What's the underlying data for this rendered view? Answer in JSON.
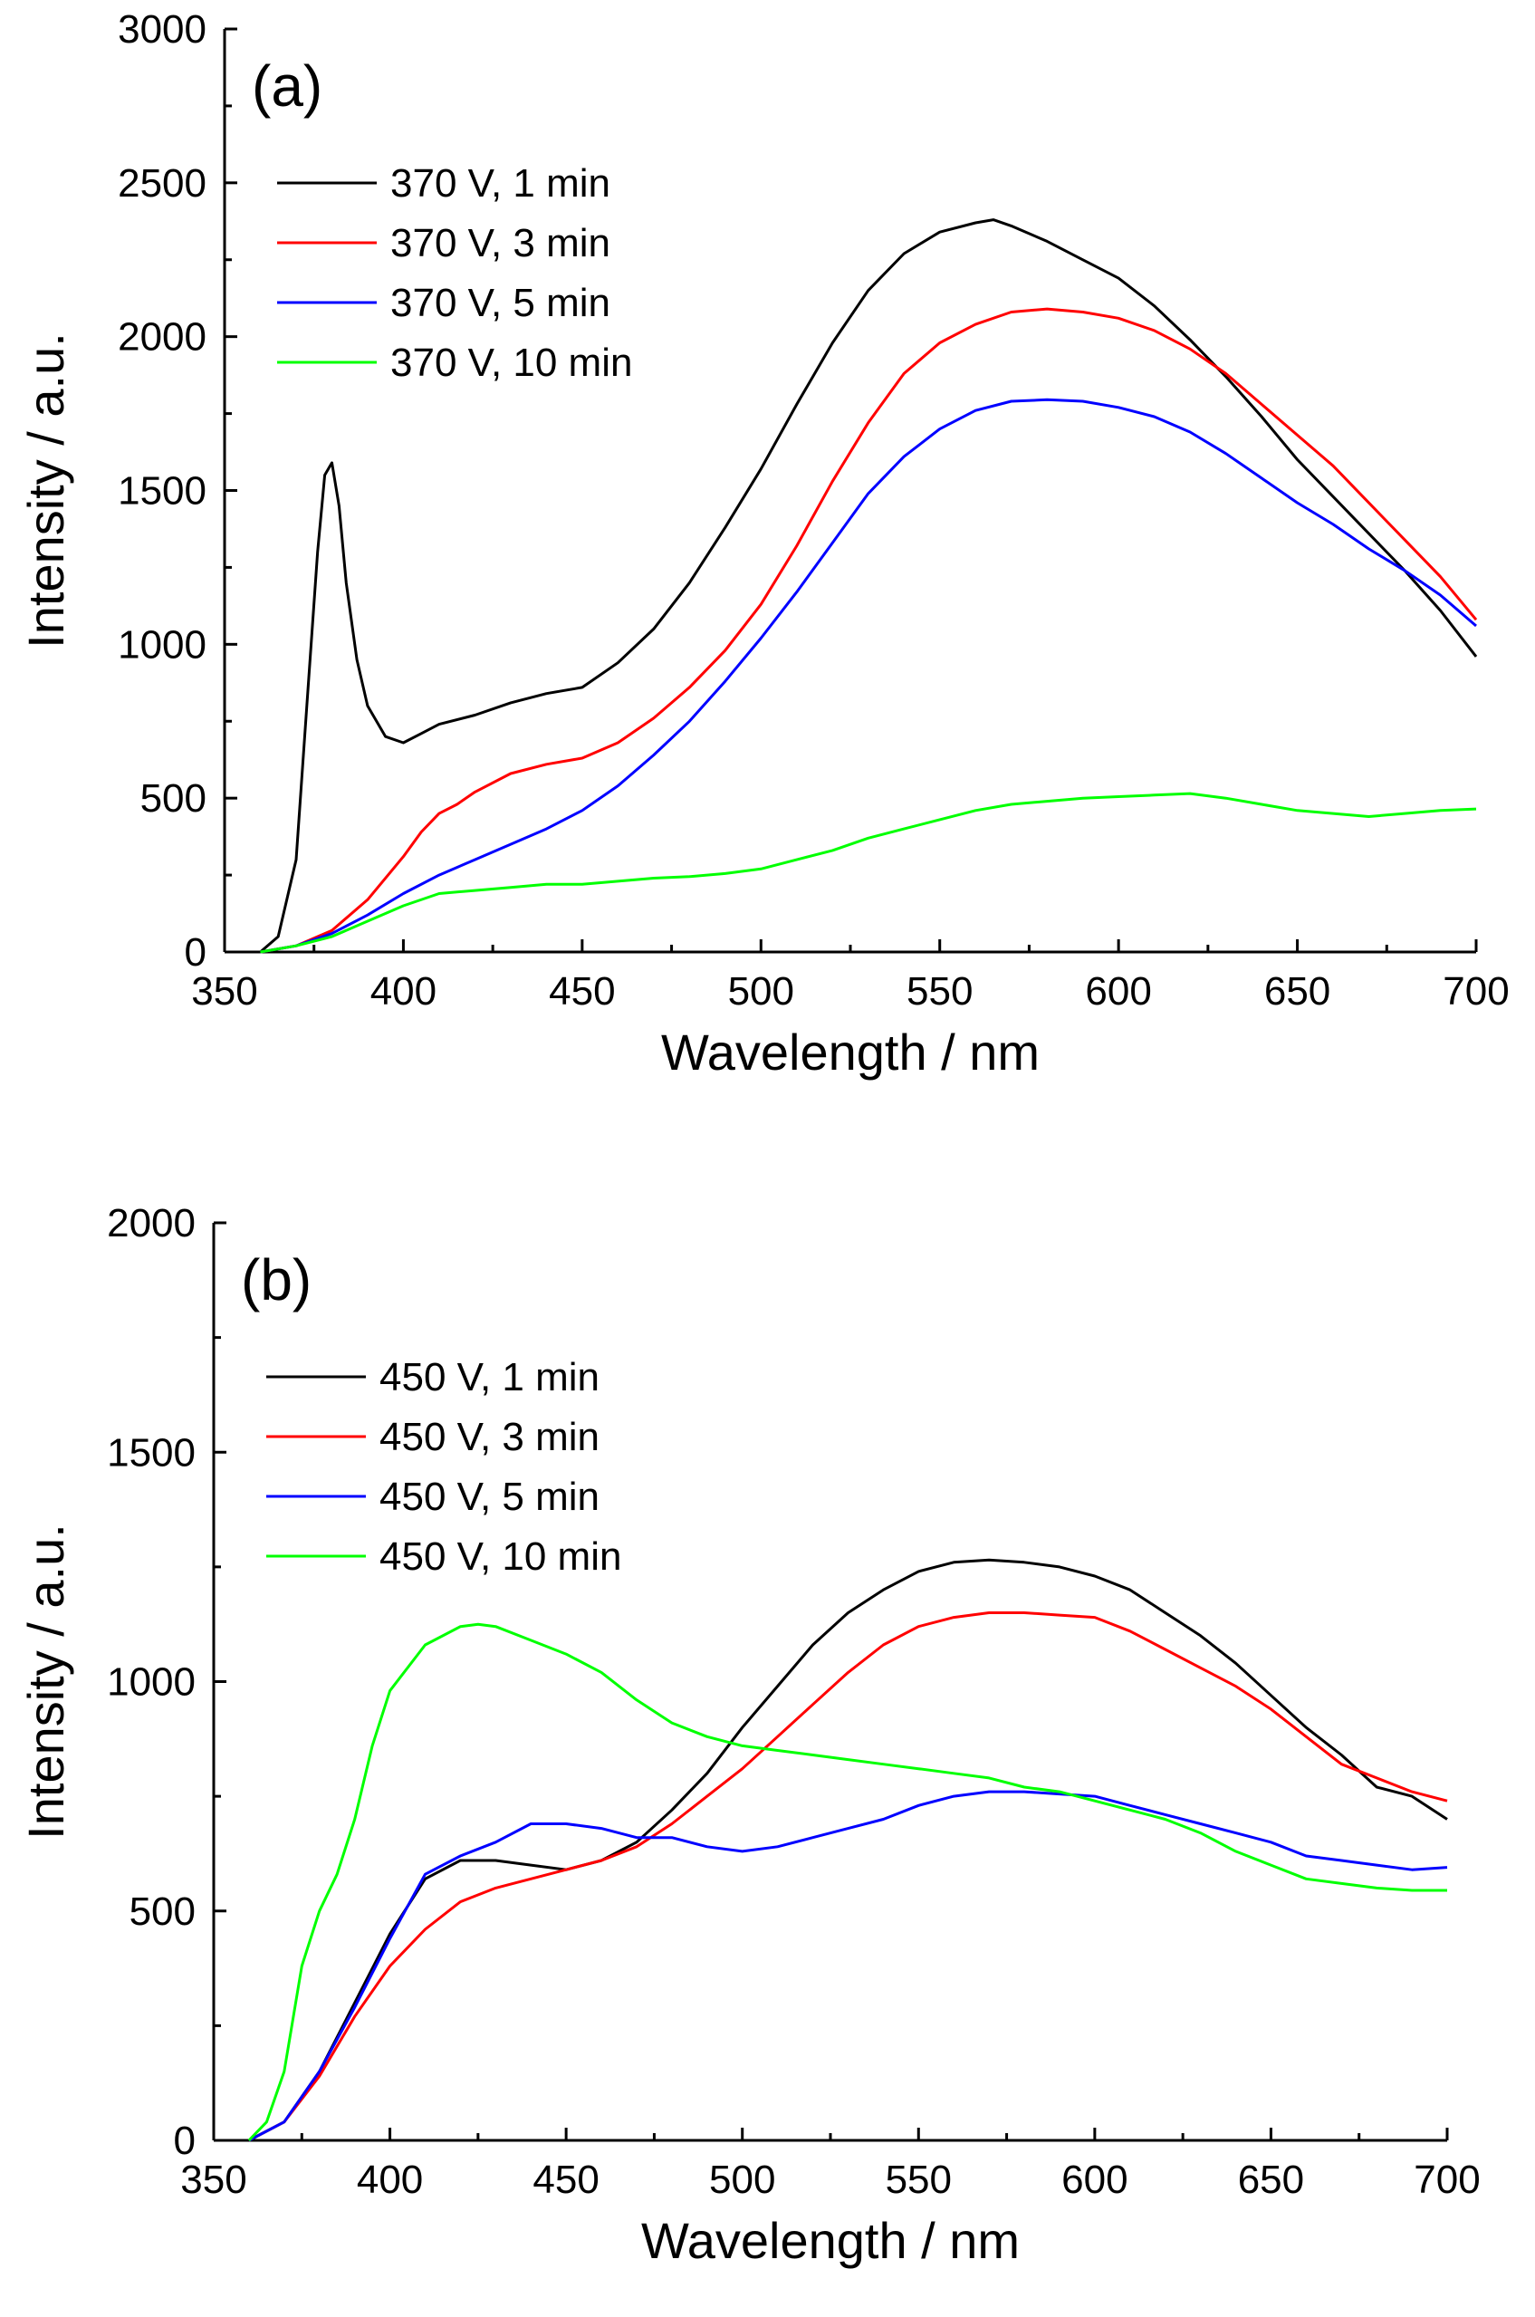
{
  "chart_data": [
    {
      "type": "line",
      "panel_label": "(a)",
      "xlabel": "Wavelength / nm",
      "ylabel": "Intensity / a.u.",
      "xlim": [
        350,
        700
      ],
      "ylim": [
        0,
        3000
      ],
      "xticks": [
        "350",
        "400",
        "450",
        "500",
        "550",
        "600",
        "650",
        "700"
      ],
      "yticks": [
        "0",
        "500",
        "1000",
        "1500",
        "2000",
        "2500",
        "3000"
      ],
      "grid": false,
      "legend_position": "top-left",
      "series": [
        {
          "name": "370 V, 1 min",
          "color": "#000000",
          "x": [
            360,
            365,
            370,
            373,
            376,
            378,
            380,
            382,
            384,
            387,
            390,
            395,
            400,
            405,
            410,
            420,
            430,
            440,
            450,
            460,
            470,
            480,
            490,
            500,
            510,
            520,
            530,
            540,
            550,
            560,
            565,
            570,
            580,
            590,
            600,
            610,
            620,
            630,
            640,
            650,
            660,
            670,
            680,
            690,
            700
          ],
          "y": [
            0,
            50,
            300,
            800,
            1300,
            1550,
            1590,
            1450,
            1200,
            950,
            800,
            700,
            680,
            710,
            740,
            770,
            810,
            840,
            860,
            940,
            1050,
            1200,
            1380,
            1570,
            1780,
            1980,
            2150,
            2270,
            2340,
            2370,
            2380,
            2360,
            2310,
            2250,
            2190,
            2100,
            1990,
            1870,
            1740,
            1600,
            1480,
            1360,
            1240,
            1110,
            960
          ]
        },
        {
          "name": "370 V, 3 min",
          "color": "#ff0000",
          "x": [
            360,
            370,
            380,
            390,
            400,
            405,
            410,
            415,
            420,
            430,
            440,
            450,
            460,
            470,
            480,
            490,
            500,
            510,
            520,
            530,
            540,
            550,
            560,
            570,
            580,
            590,
            600,
            610,
            620,
            630,
            640,
            650,
            660,
            670,
            680,
            690,
            700
          ],
          "y": [
            0,
            20,
            70,
            170,
            310,
            390,
            450,
            480,
            520,
            580,
            610,
            630,
            680,
            760,
            860,
            980,
            1130,
            1320,
            1530,
            1720,
            1880,
            1980,
            2040,
            2080,
            2090,
            2080,
            2060,
            2020,
            1960,
            1880,
            1780,
            1680,
            1580,
            1460,
            1340,
            1220,
            1080
          ]
        },
        {
          "name": "370 V, 5 min",
          "color": "#0000ff",
          "x": [
            360,
            370,
            380,
            390,
            400,
            410,
            420,
            430,
            440,
            450,
            460,
            470,
            480,
            490,
            500,
            510,
            520,
            530,
            540,
            550,
            560,
            570,
            580,
            590,
            600,
            610,
            620,
            630,
            640,
            650,
            660,
            670,
            680,
            690,
            700
          ],
          "y": [
            0,
            20,
            60,
            120,
            190,
            250,
            300,
            350,
            400,
            460,
            540,
            640,
            750,
            880,
            1020,
            1170,
            1330,
            1490,
            1610,
            1700,
            1760,
            1790,
            1795,
            1790,
            1770,
            1740,
            1690,
            1620,
            1540,
            1460,
            1390,
            1310,
            1240,
            1160,
            1060
          ]
        },
        {
          "name": "370 V, 10 min",
          "color": "#00ff00",
          "x": [
            360,
            370,
            380,
            390,
            400,
            410,
            420,
            430,
            440,
            450,
            460,
            470,
            480,
            490,
            500,
            510,
            520,
            530,
            540,
            550,
            560,
            570,
            580,
            590,
            600,
            610,
            620,
            630,
            640,
            650,
            660,
            670,
            680,
            690,
            700
          ],
          "y": [
            0,
            20,
            50,
            100,
            150,
            190,
            200,
            210,
            220,
            220,
            230,
            240,
            245,
            255,
            270,
            300,
            330,
            370,
            400,
            430,
            460,
            480,
            490,
            500,
            505,
            510,
            515,
            500,
            480,
            460,
            450,
            440,
            450,
            460,
            465
          ]
        }
      ]
    },
    {
      "type": "line",
      "panel_label": "(b)",
      "xlabel": "Wavelength / nm",
      "ylabel": "Intensity / a.u.",
      "xlim": [
        350,
        700
      ],
      "ylim": [
        0,
        2000
      ],
      "xticks": [
        "350",
        "400",
        "450",
        "500",
        "550",
        "600",
        "650",
        "700"
      ],
      "yticks": [
        "0",
        "500",
        "1000",
        "1500",
        "2000"
      ],
      "grid": false,
      "legend_position": "top-left",
      "series": [
        {
          "name": "450 V, 1 min",
          "color": "#000000",
          "x": [
            360,
            370,
            380,
            390,
            400,
            410,
            420,
            430,
            440,
            450,
            460,
            470,
            480,
            490,
            500,
            510,
            520,
            530,
            540,
            550,
            560,
            570,
            580,
            590,
            600,
            610,
            620,
            630,
            640,
            650,
            660,
            670,
            680,
            690,
            700
          ],
          "y": [
            0,
            40,
            150,
            300,
            450,
            570,
            610,
            610,
            600,
            590,
            610,
            650,
            720,
            800,
            900,
            990,
            1080,
            1150,
            1200,
            1240,
            1260,
            1265,
            1260,
            1250,
            1230,
            1200,
            1150,
            1100,
            1040,
            970,
            900,
            840,
            770,
            750,
            700
          ]
        },
        {
          "name": "450 V, 3 min",
          "color": "#ff0000",
          "x": [
            360,
            370,
            380,
            390,
            400,
            410,
            420,
            430,
            440,
            450,
            460,
            470,
            480,
            490,
            500,
            510,
            520,
            530,
            540,
            550,
            560,
            570,
            580,
            590,
            600,
            610,
            620,
            630,
            640,
            650,
            660,
            670,
            680,
            690,
            700
          ],
          "y": [
            0,
            40,
            140,
            270,
            380,
            460,
            520,
            550,
            570,
            590,
            610,
            640,
            690,
            750,
            810,
            880,
            950,
            1020,
            1080,
            1120,
            1140,
            1150,
            1150,
            1145,
            1140,
            1110,
            1070,
            1030,
            990,
            940,
            880,
            820,
            790,
            760,
            740
          ]
        },
        {
          "name": "450 V, 5 min",
          "color": "#0000ff",
          "x": [
            360,
            370,
            380,
            390,
            400,
            410,
            420,
            430,
            440,
            450,
            460,
            470,
            480,
            490,
            500,
            510,
            520,
            530,
            540,
            550,
            560,
            570,
            580,
            590,
            600,
            610,
            620,
            630,
            640,
            650,
            660,
            670,
            680,
            690,
            700
          ],
          "y": [
            0,
            40,
            150,
            290,
            440,
            580,
            620,
            650,
            690,
            690,
            680,
            660,
            660,
            640,
            630,
            640,
            660,
            680,
            700,
            730,
            750,
            760,
            760,
            755,
            750,
            730,
            710,
            690,
            670,
            650,
            620,
            610,
            600,
            590,
            595
          ]
        },
        {
          "name": "450 V, 10 min",
          "color": "#00ff00",
          "x": [
            360,
            365,
            370,
            375,
            380,
            385,
            390,
            395,
            400,
            410,
            420,
            425,
            430,
            440,
            450,
            460,
            470,
            480,
            490,
            500,
            510,
            520,
            530,
            540,
            550,
            560,
            570,
            580,
            590,
            600,
            610,
            620,
            630,
            640,
            650,
            660,
            670,
            680,
            690,
            700
          ],
          "y": [
            0,
            40,
            150,
            380,
            500,
            580,
            700,
            860,
            980,
            1080,
            1120,
            1125,
            1120,
            1090,
            1060,
            1020,
            960,
            910,
            880,
            860,
            850,
            840,
            830,
            820,
            810,
            800,
            790,
            770,
            760,
            740,
            720,
            700,
            670,
            630,
            600,
            570,
            560,
            550,
            545,
            545
          ]
        }
      ]
    }
  ]
}
